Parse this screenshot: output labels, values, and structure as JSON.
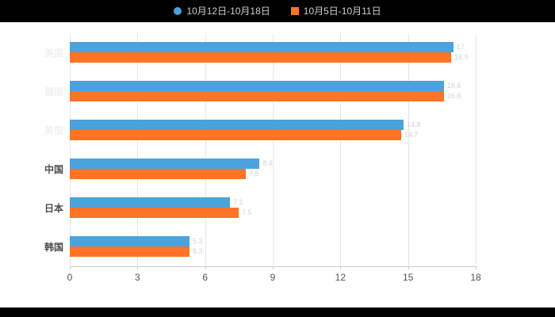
{
  "page": {
    "background_color": "#000000",
    "panel_color": "#ffffff"
  },
  "legend": {
    "items": [
      {
        "label": "10月12日-10月18日",
        "color": "#4AA3DC",
        "marker": "circle"
      },
      {
        "label": "10月5日-10月11日",
        "color": "#FF7426",
        "marker": "square"
      }
    ],
    "text_color": "#cfcfcf",
    "position": "top-center"
  },
  "chart_data": {
    "type": "bar",
    "orientation": "horizontal",
    "title": "",
    "xlabel": "",
    "ylabel": "",
    "categories": [
      "美国",
      "德国",
      "英国",
      "中国",
      "日本",
      "韩国"
    ],
    "series": [
      {
        "name": "10月12日-10月18日",
        "color": "#4AA3DC",
        "values": [
          17.0,
          16.6,
          14.8,
          8.4,
          7.1,
          5.3
        ]
      },
      {
        "name": "10月5日-10月11日",
        "color": "#FF7426",
        "values": [
          16.9,
          16.6,
          14.7,
          7.8,
          7.5,
          5.3
        ]
      }
    ],
    "xlim": [
      0,
      18
    ],
    "x_ticks": [
      0,
      3,
      6,
      9,
      12,
      15,
      18
    ],
    "grid": true,
    "legend_position": "top",
    "category_label_colors": [
      "#f0f0f0",
      "#f0f0f0",
      "#f0f0f0",
      "#4d4d4d",
      "#4d4d4d",
      "#4d4d4d"
    ],
    "axis_label_color": "#555555",
    "grid_color": "#e6e6e6",
    "value_label_color": "#d4d4d4"
  }
}
